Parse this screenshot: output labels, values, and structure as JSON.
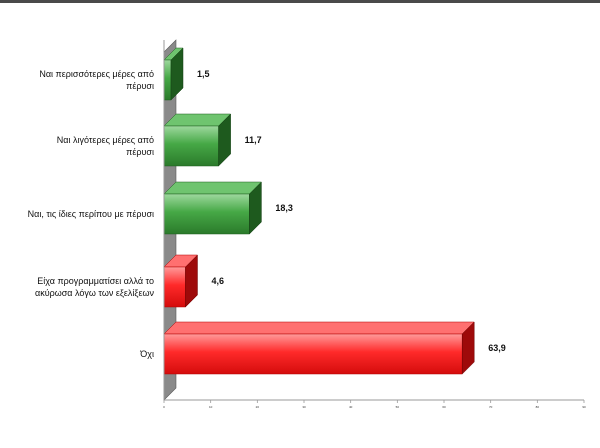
{
  "chart_data": {
    "type": "bar",
    "orientation": "horizontal",
    "style": "3d",
    "categories": [
      [
        "Ναι περισσότερες μέρες από",
        "πέρυσι"
      ],
      [
        "Ναι λιγότερες μέρες από",
        "πέρυσι"
      ],
      [
        "Ναι, τις ίδιες περίπου με πέρυσι"
      ],
      [
        "Είχα προγραμματίσει αλλά το",
        "ακύρωσα λόγω των εξελίξεων"
      ],
      [
        "Όχι"
      ]
    ],
    "values": [
      1.5,
      11.7,
      18.3,
      4.6,
      63.9
    ],
    "value_labels": [
      "1,5",
      "11,7",
      "18,3",
      "4,6",
      "63,9"
    ],
    "bar_colors": [
      "#3fa03f",
      "#3fa03f",
      "#3fa03f",
      "#ff1f1f",
      "#ff1f1f"
    ],
    "xlim": [
      0,
      90
    ],
    "xticks": [
      "0",
      "10",
      "20",
      "30",
      "40",
      "50",
      "60",
      "70",
      "80",
      "90"
    ],
    "title": "",
    "xlabel": "",
    "ylabel": ""
  }
}
